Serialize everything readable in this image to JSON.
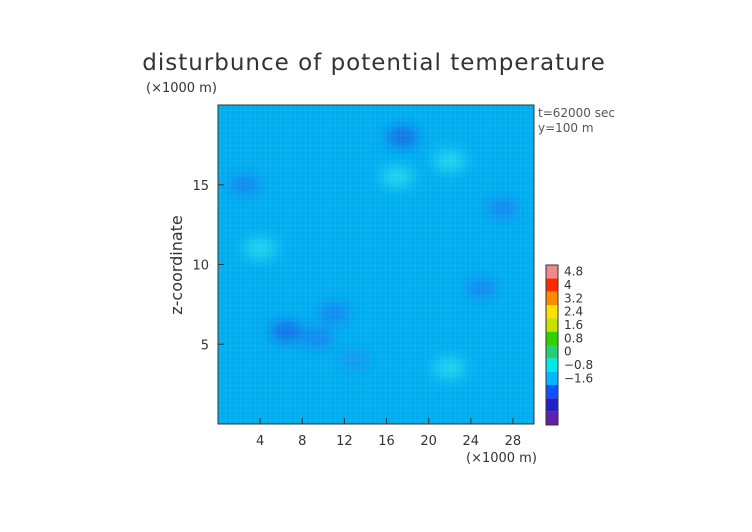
{
  "chart_data": {
    "type": "heatmap",
    "title": "disturbunce of potential temperature",
    "xlabel": "(×1000 m)",
    "ylabel": "z-coordinate",
    "y_unit_label": "(×1000 m)",
    "info": [
      "t=62000 sec",
      "y=100 m"
    ],
    "x_ticks": [
      "4",
      "8",
      "12",
      "16",
      "20",
      "24",
      "28"
    ],
    "x_tick_values": [
      4,
      8,
      12,
      16,
      20,
      24,
      28
    ],
    "y_ticks": [
      "5",
      "10",
      "15"
    ],
    "y_tick_values": [
      5,
      10,
      15
    ],
    "xlim": [
      0,
      30
    ],
    "ylim": [
      0,
      20
    ],
    "colorbar": {
      "labels": [
        "4.8",
        "4",
        "3.2",
        "2.4",
        "1.6",
        "0.8",
        "0",
        "−0.8",
        "−1.6"
      ],
      "levels": [
        4.8,
        4.0,
        3.2,
        2.4,
        1.6,
        0.8,
        0,
        -0.8,
        -1.6
      ],
      "colors": [
        "#f08a8a",
        "#ff2a00",
        "#ff8a00",
        "#ffe000",
        "#c8e200",
        "#33d000",
        "#25d070",
        "#00e8e8",
        "#00b8ff",
        "#1050ff",
        "#2020c8",
        "#6020a8"
      ]
    },
    "features": [
      {
        "x": 17.5,
        "y": 18.0,
        "value": -0.6
      },
      {
        "x": 2.5,
        "y": 15.0,
        "value": -0.5
      },
      {
        "x": 27.0,
        "y": 13.5,
        "value": -0.5
      },
      {
        "x": 6.5,
        "y": 5.8,
        "value": -0.6
      },
      {
        "x": 9.5,
        "y": 5.4,
        "value": -0.5
      },
      {
        "x": 25.0,
        "y": 8.5,
        "value": -0.4
      },
      {
        "x": 17.0,
        "y": 15.5,
        "value": 0.3
      },
      {
        "x": 22.0,
        "y": 16.5,
        "value": 0.25
      },
      {
        "x": 4.0,
        "y": 11.0,
        "value": 0.15
      },
      {
        "x": 22.0,
        "y": 3.5,
        "value": 0.15
      },
      {
        "x": 11.0,
        "y": 7.0,
        "value": -0.35
      },
      {
        "x": 13.0,
        "y": 4.0,
        "value": -0.3
      }
    ]
  }
}
